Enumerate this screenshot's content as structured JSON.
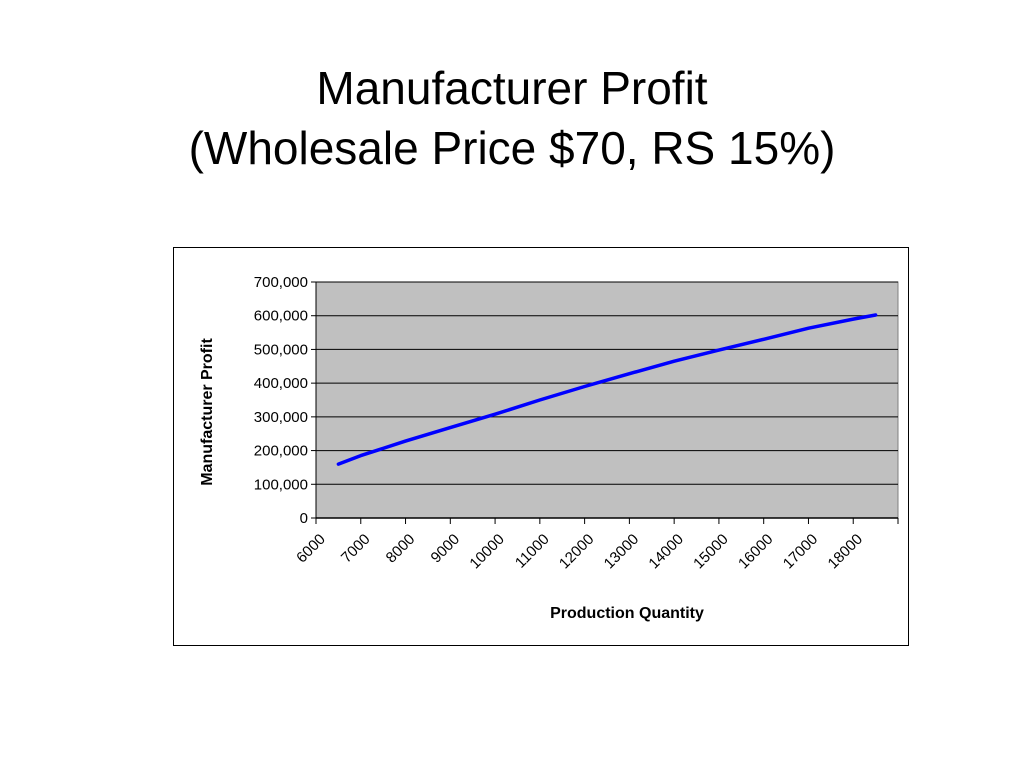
{
  "slide": {
    "title_line1": "Manufacturer Profit",
    "title_line2": "(Wholesale Price $70, RS 15%)"
  },
  "chart_data": {
    "type": "line",
    "title": "",
    "xlabel": "Production Quantity",
    "ylabel": "Manufacturer Profit",
    "x_categories": [
      "6000",
      "7000",
      "8000",
      "9000",
      "10000",
      "11000",
      "12000",
      "13000",
      "14000",
      "15000",
      "16000",
      "17000",
      "18000"
    ],
    "xlim": [
      6000,
      19000
    ],
    "ylim": [
      0,
      700000
    ],
    "y_ticks": [
      0,
      100000,
      200000,
      300000,
      400000,
      500000,
      600000,
      700000
    ],
    "y_tick_labels": [
      "0",
      "100,000",
      "200,000",
      "300,000",
      "400,000",
      "500,000",
      "600,000",
      "700,000"
    ],
    "grid": true,
    "plot_background": "#c0c0c0",
    "series": [
      {
        "color": "#0000ff",
        "x": [
          6500,
          7000,
          8000,
          9000,
          10000,
          11000,
          12000,
          13000,
          14000,
          15000,
          16000,
          17000,
          18000,
          18500
        ],
        "y": [
          160000,
          185000,
          228000,
          268000,
          308000,
          350000,
          390000,
          428000,
          465000,
          498000,
          530000,
          563000,
          590000,
          602000
        ]
      }
    ]
  }
}
